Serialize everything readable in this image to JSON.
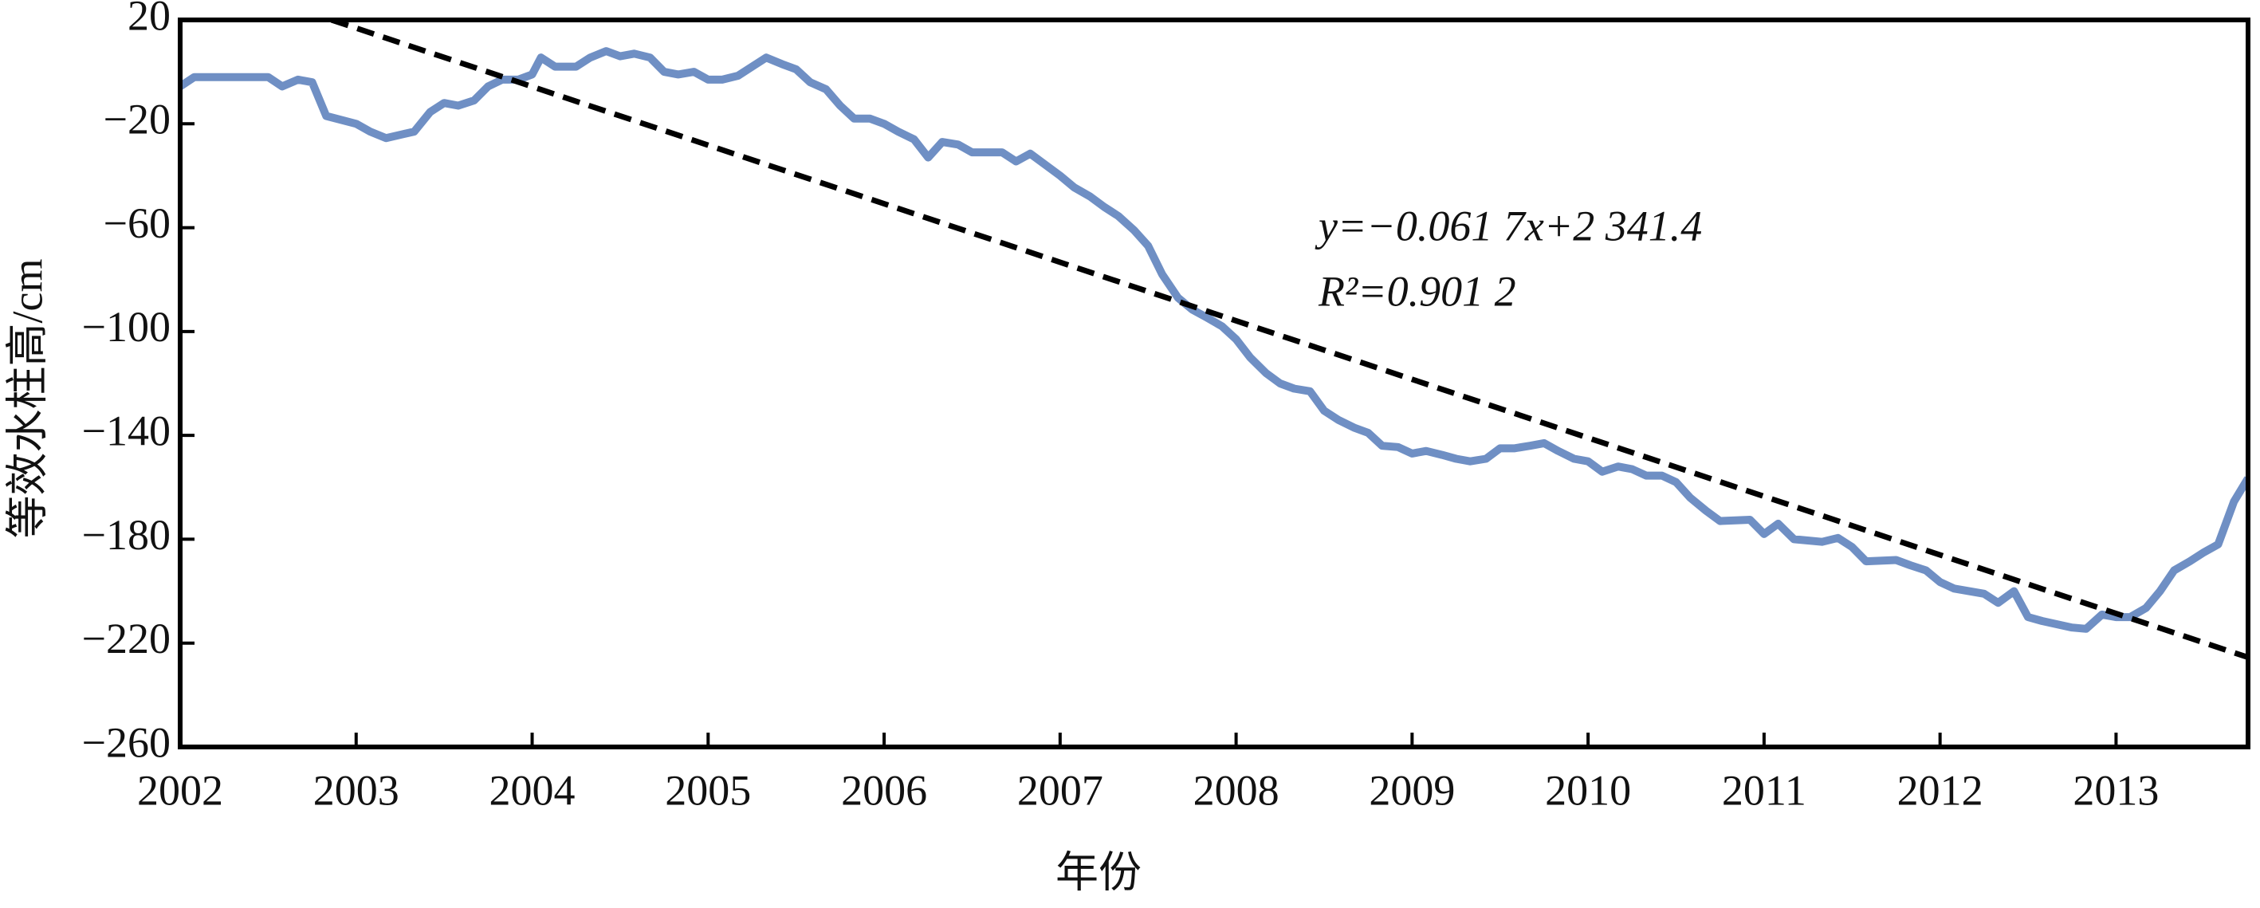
{
  "chart_data": {
    "type": "line",
    "x_label": "年份",
    "y_label": "等效水柱高/cm",
    "annotations": [
      "y=−0.061 7x+2 341.4",
      "R²=0.901 2"
    ],
    "xlim": [
      2002,
      2013.75
    ],
    "ylim": [
      -260,
      20
    ],
    "xticks": [
      2002,
      2003,
      2004,
      2005,
      2006,
      2007,
      2008,
      2009,
      2010,
      2011,
      2012,
      2013
    ],
    "yticks": [
      20,
      {
        "value": -20,
        "label": "−20"
      },
      {
        "value": -60,
        "label": "−60"
      },
      {
        "value": -100,
        "label": "−100"
      },
      {
        "value": -140,
        "label": "−140"
      },
      {
        "value": -180,
        "label": "−180"
      },
      {
        "value": -220,
        "label": "−220"
      },
      {
        "value": -260,
        "label": "−260"
      }
    ],
    "series": [
      {
        "color": "#6f8fc4",
        "x": [
          2002.0,
          2002.08,
          2002.5,
          2002.58,
          2002.67,
          2002.75,
          2002.83,
          2003.0,
          2003.08,
          2003.17,
          2003.33,
          2003.42,
          2003.5,
          2003.58,
          2003.67,
          2003.75,
          2003.83,
          2003.92,
          2004.0,
          2004.05,
          2004.13,
          2004.25,
          2004.33,
          2004.42,
          2004.5,
          2004.58,
          2004.67,
          2004.75,
          2004.83,
          2004.92,
          2005.0,
          2005.08,
          2005.17,
          2005.25,
          2005.33,
          2005.42,
          2005.5,
          2005.58,
          2005.67,
          2005.75,
          2005.83,
          2005.92,
          2006.0,
          2006.08,
          2006.17,
          2006.25,
          2006.33,
          2006.42,
          2006.5,
          2006.67,
          2006.75,
          2006.83,
          2006.92,
          2007.0,
          2007.08,
          2007.17,
          2007.25,
          2007.33,
          2007.42,
          2007.5,
          2007.58,
          2007.67,
          2007.75,
          2007.83,
          2007.92,
          2008.0,
          2008.08,
          2008.17,
          2008.25,
          2008.33,
          2008.42,
          2008.5,
          2008.58,
          2008.67,
          2008.75,
          2008.83,
          2008.92,
          2009.0,
          2009.08,
          2009.17,
          2009.25,
          2009.33,
          2009.42,
          2009.5,
          2009.58,
          2009.67,
          2009.75,
          2009.83,
          2009.92,
          2010.0,
          2010.08,
          2010.17,
          2010.25,
          2010.33,
          2010.42,
          2010.5,
          2010.58,
          2010.67,
          2010.75,
          2010.92,
          2011.0,
          2011.08,
          2011.17,
          2011.33,
          2011.42,
          2011.5,
          2011.58,
          2011.75,
          2011.83,
          2011.92,
          2012.0,
          2012.08,
          2012.25,
          2012.33,
          2012.42,
          2012.5,
          2012.58,
          2012.75,
          2012.83,
          2012.92,
          2013.0,
          2013.08,
          2013.17,
          2013.25,
          2013.33,
          2013.42,
          2013.5,
          2013.58,
          2013.67,
          2013.75
        ],
        "values": [
          -5.6,
          -2,
          -2,
          -5.6,
          -3,
          -4,
          -17,
          -20,
          -23,
          -25.5,
          -23,
          -15.5,
          -12,
          -13,
          -11,
          -5.6,
          -3,
          -3,
          -1,
          5.5,
          2,
          2,
          5.5,
          8,
          6,
          7,
          5.5,
          0,
          -1,
          0,
          -3,
          -3,
          -1.5,
          2,
          5.5,
          3,
          1,
          -4,
          -6.7,
          -13,
          -18,
          -18,
          -20,
          -23,
          -26,
          -33,
          -27,
          -28,
          -31,
          -31,
          -34.5,
          -31.5,
          -36,
          -40,
          -44.5,
          -48,
          -52,
          -55.5,
          -61,
          -67,
          -78,
          -87,
          -91.5,
          -94.5,
          -98,
          -103,
          -110,
          -116,
          -120,
          -122,
          -123,
          -130.5,
          -134,
          -137,
          -139,
          -144,
          -144.5,
          -147,
          -146,
          -147.5,
          -149,
          -150,
          -149,
          -145,
          -145,
          -144,
          -143,
          -146,
          -149,
          -150,
          -154,
          -152,
          -153,
          -155.5,
          -155.5,
          -158,
          -164,
          -169,
          -173,
          -172.5,
          -178,
          -174,
          -180,
          -181,
          -179.5,
          -183,
          -188.5,
          -188,
          -190,
          -192,
          -196.5,
          -199,
          -201,
          -204.5,
          -200,
          -210,
          -211.5,
          -214,
          -214.5,
          -209,
          -210,
          -210,
          -206.5,
          -200,
          -192,
          -188.5,
          -185,
          -182,
          -165.5,
          -156.5
        ]
      },
      {
        "color": "#000000",
        "dashed": true,
        "x": [
          2002.86,
          2013.75
        ],
        "values": [
          20,
          -225.5
        ]
      }
    ]
  }
}
